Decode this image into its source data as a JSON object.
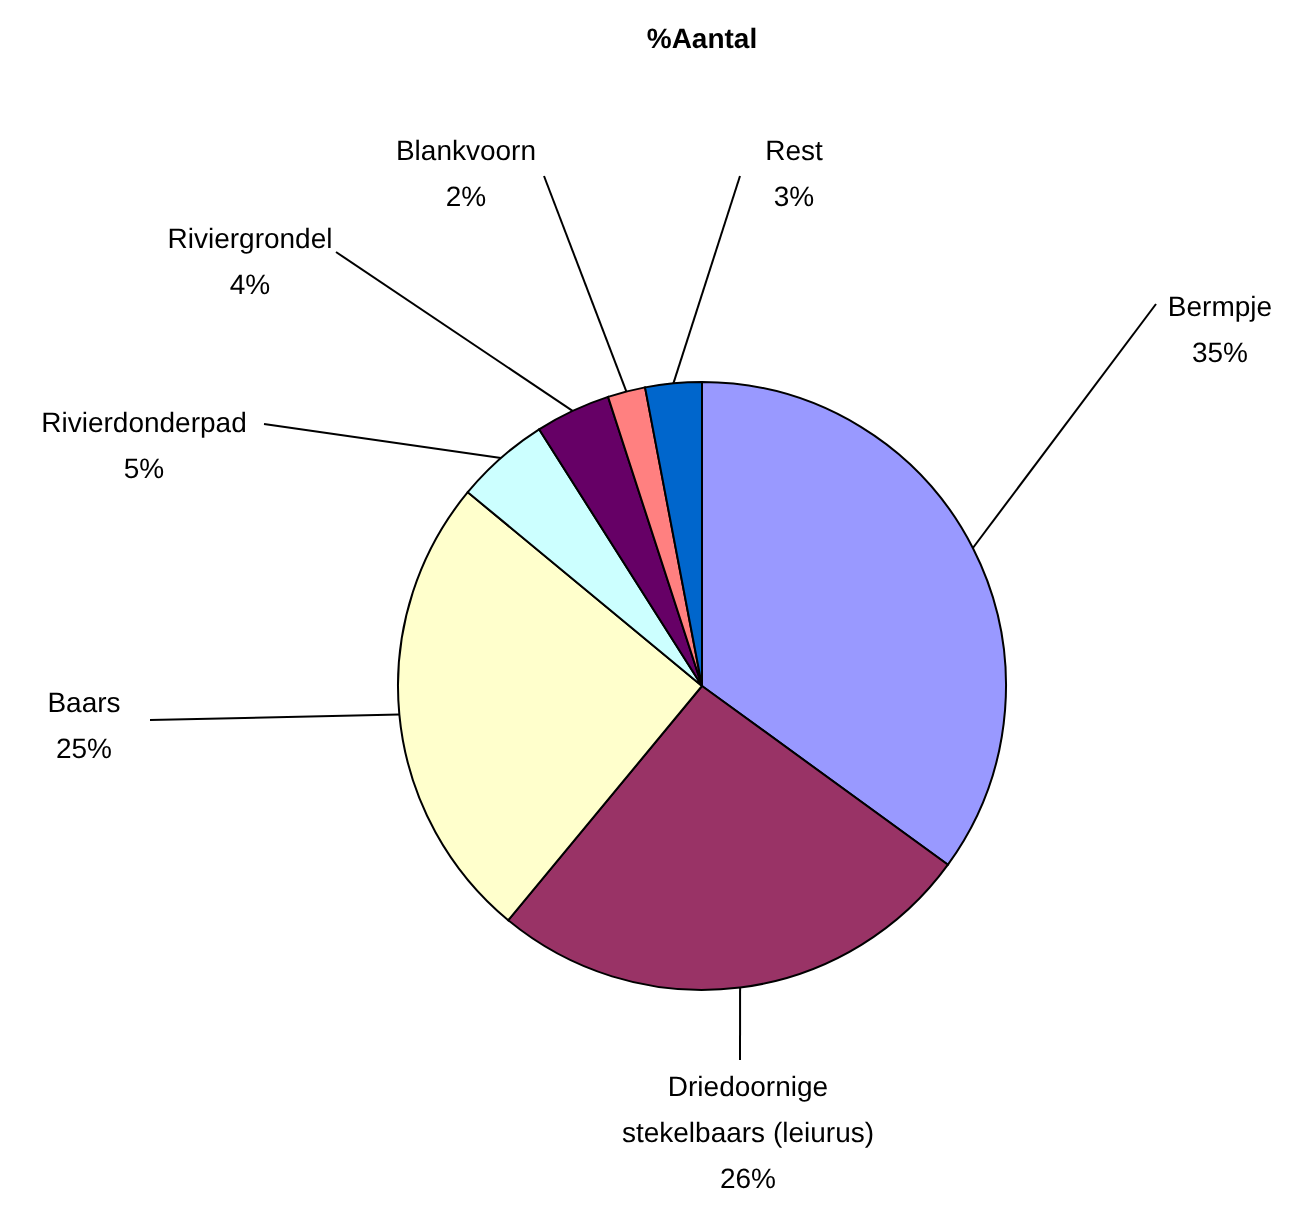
{
  "chart_data": {
    "type": "pie",
    "title": "%Aantal",
    "categories": [
      "Bermpje",
      "Driedoornige stekelbaars (leiurus)",
      "Baars",
      "Rivierdonderpad",
      "Riviergrondel",
      "Blankvoorn",
      "Rest"
    ],
    "values": [
      35,
      26,
      25,
      5,
      4,
      2,
      3
    ],
    "colors": [
      "#9999ff",
      "#993366",
      "#ffffcc",
      "#ccffff",
      "#660066",
      "#ff8080",
      "#0066cc"
    ],
    "value_labels": [
      "35%",
      "26%",
      "25%",
      "5%",
      "4%",
      "2%",
      "3%"
    ]
  }
}
